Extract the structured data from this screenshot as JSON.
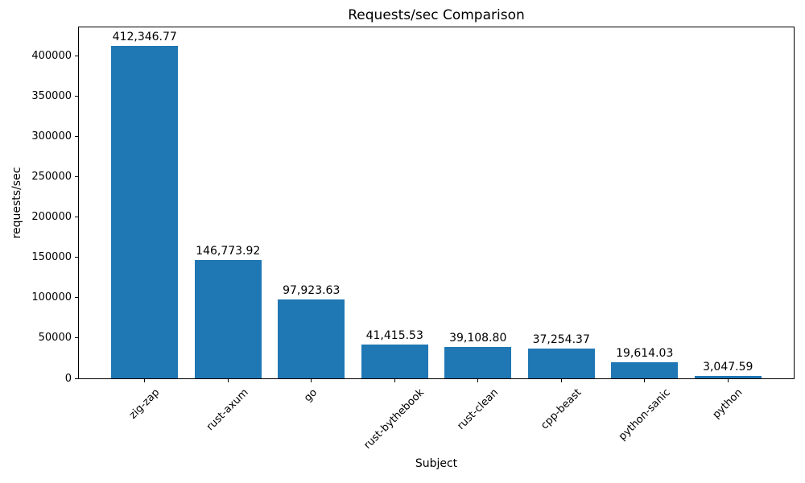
{
  "chart_data": {
    "type": "bar",
    "title": "Requests/sec Comparison",
    "xlabel": "Subject",
    "ylabel": "requests/sec",
    "categories": [
      "zig-zap",
      "rust-axum",
      "go",
      "rust-bythebook",
      "rust-clean",
      "cpp-beast",
      "python-sanic",
      "python"
    ],
    "values": [
      412346.77,
      146773.92,
      97923.63,
      41415.53,
      39108.8,
      37254.37,
      19614.03,
      3047.59
    ],
    "value_labels": [
      "412,346.77",
      "146,773.92",
      "97,923.63",
      "41,415.53",
      "39,108.80",
      "37,254.37",
      "19,614.03",
      "3,047.59"
    ],
    "y_ticks": [
      0,
      50000,
      100000,
      150000,
      200000,
      250000,
      300000,
      350000,
      400000
    ],
    "ylim": [
      0,
      435000
    ],
    "bar_color": "#1f77b4",
    "grid": false,
    "legend": null
  }
}
